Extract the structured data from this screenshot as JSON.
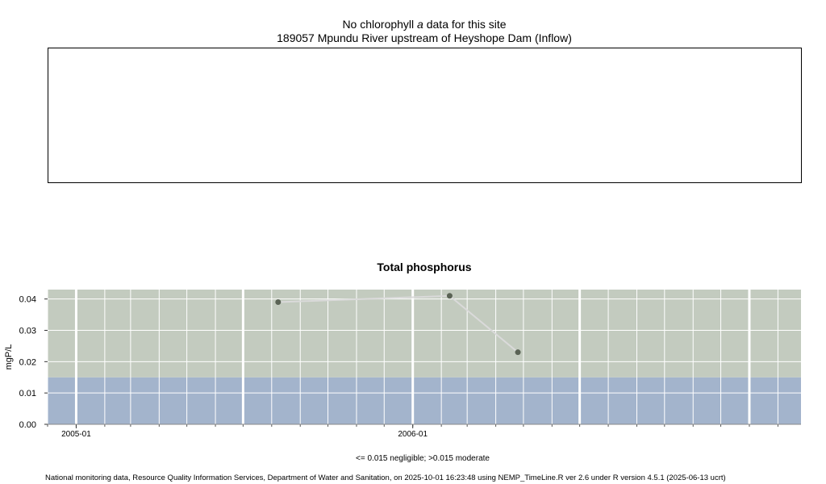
{
  "chla_panel": {
    "title_prefix": "No chlorophyll",
    "title_italic": "a",
    "title_suffix": "data for this site",
    "site": "189057 Mpundu River upstream of Heyshope Dam (Inflow)"
  },
  "chart_data": {
    "type": "line",
    "title": "Total phosphorus",
    "xlabel": "",
    "ylabel": "mgP/L",
    "ylim": [
      0,
      0.043
    ],
    "xlim": [
      "2004-12-01",
      "2007-02-26"
    ],
    "x": [
      "2005-08-08",
      "2006-02-10",
      "2006-04-25"
    ],
    "series": [
      {
        "values": [
          0.039,
          0.041,
          0.023
        ]
      }
    ],
    "y_ticks": [
      0,
      0.01,
      0.02,
      0.03,
      0.04
    ],
    "y_tick_labels": [
      "0.00",
      "0.01",
      "0.02",
      "0.03",
      "0.04"
    ],
    "x_ticks": [
      "2005-01-01",
      "2006-01-01"
    ],
    "x_tick_labels": [
      "2005-01",
      "2006-01"
    ],
    "bands": [
      {
        "from": 0,
        "to": 0.015,
        "color": "#a3b4cc"
      },
      {
        "from": 0.015,
        "to": 0.043,
        "color": "#c3cbbf"
      }
    ],
    "line_color": "#dadada",
    "point_color": "#5a6355",
    "grid": true
  },
  "legend_text": "<= 0.015 negligible; >0.015 moderate",
  "footer": "National monitoring data, Resource Quality Information Services, Department of Water and Sanitation, on 2025-10-01 16:23:48 using NEMP_TimeLine.R ver 2.6 under R version 4.5.1 (2025-06-13 ucrt)"
}
